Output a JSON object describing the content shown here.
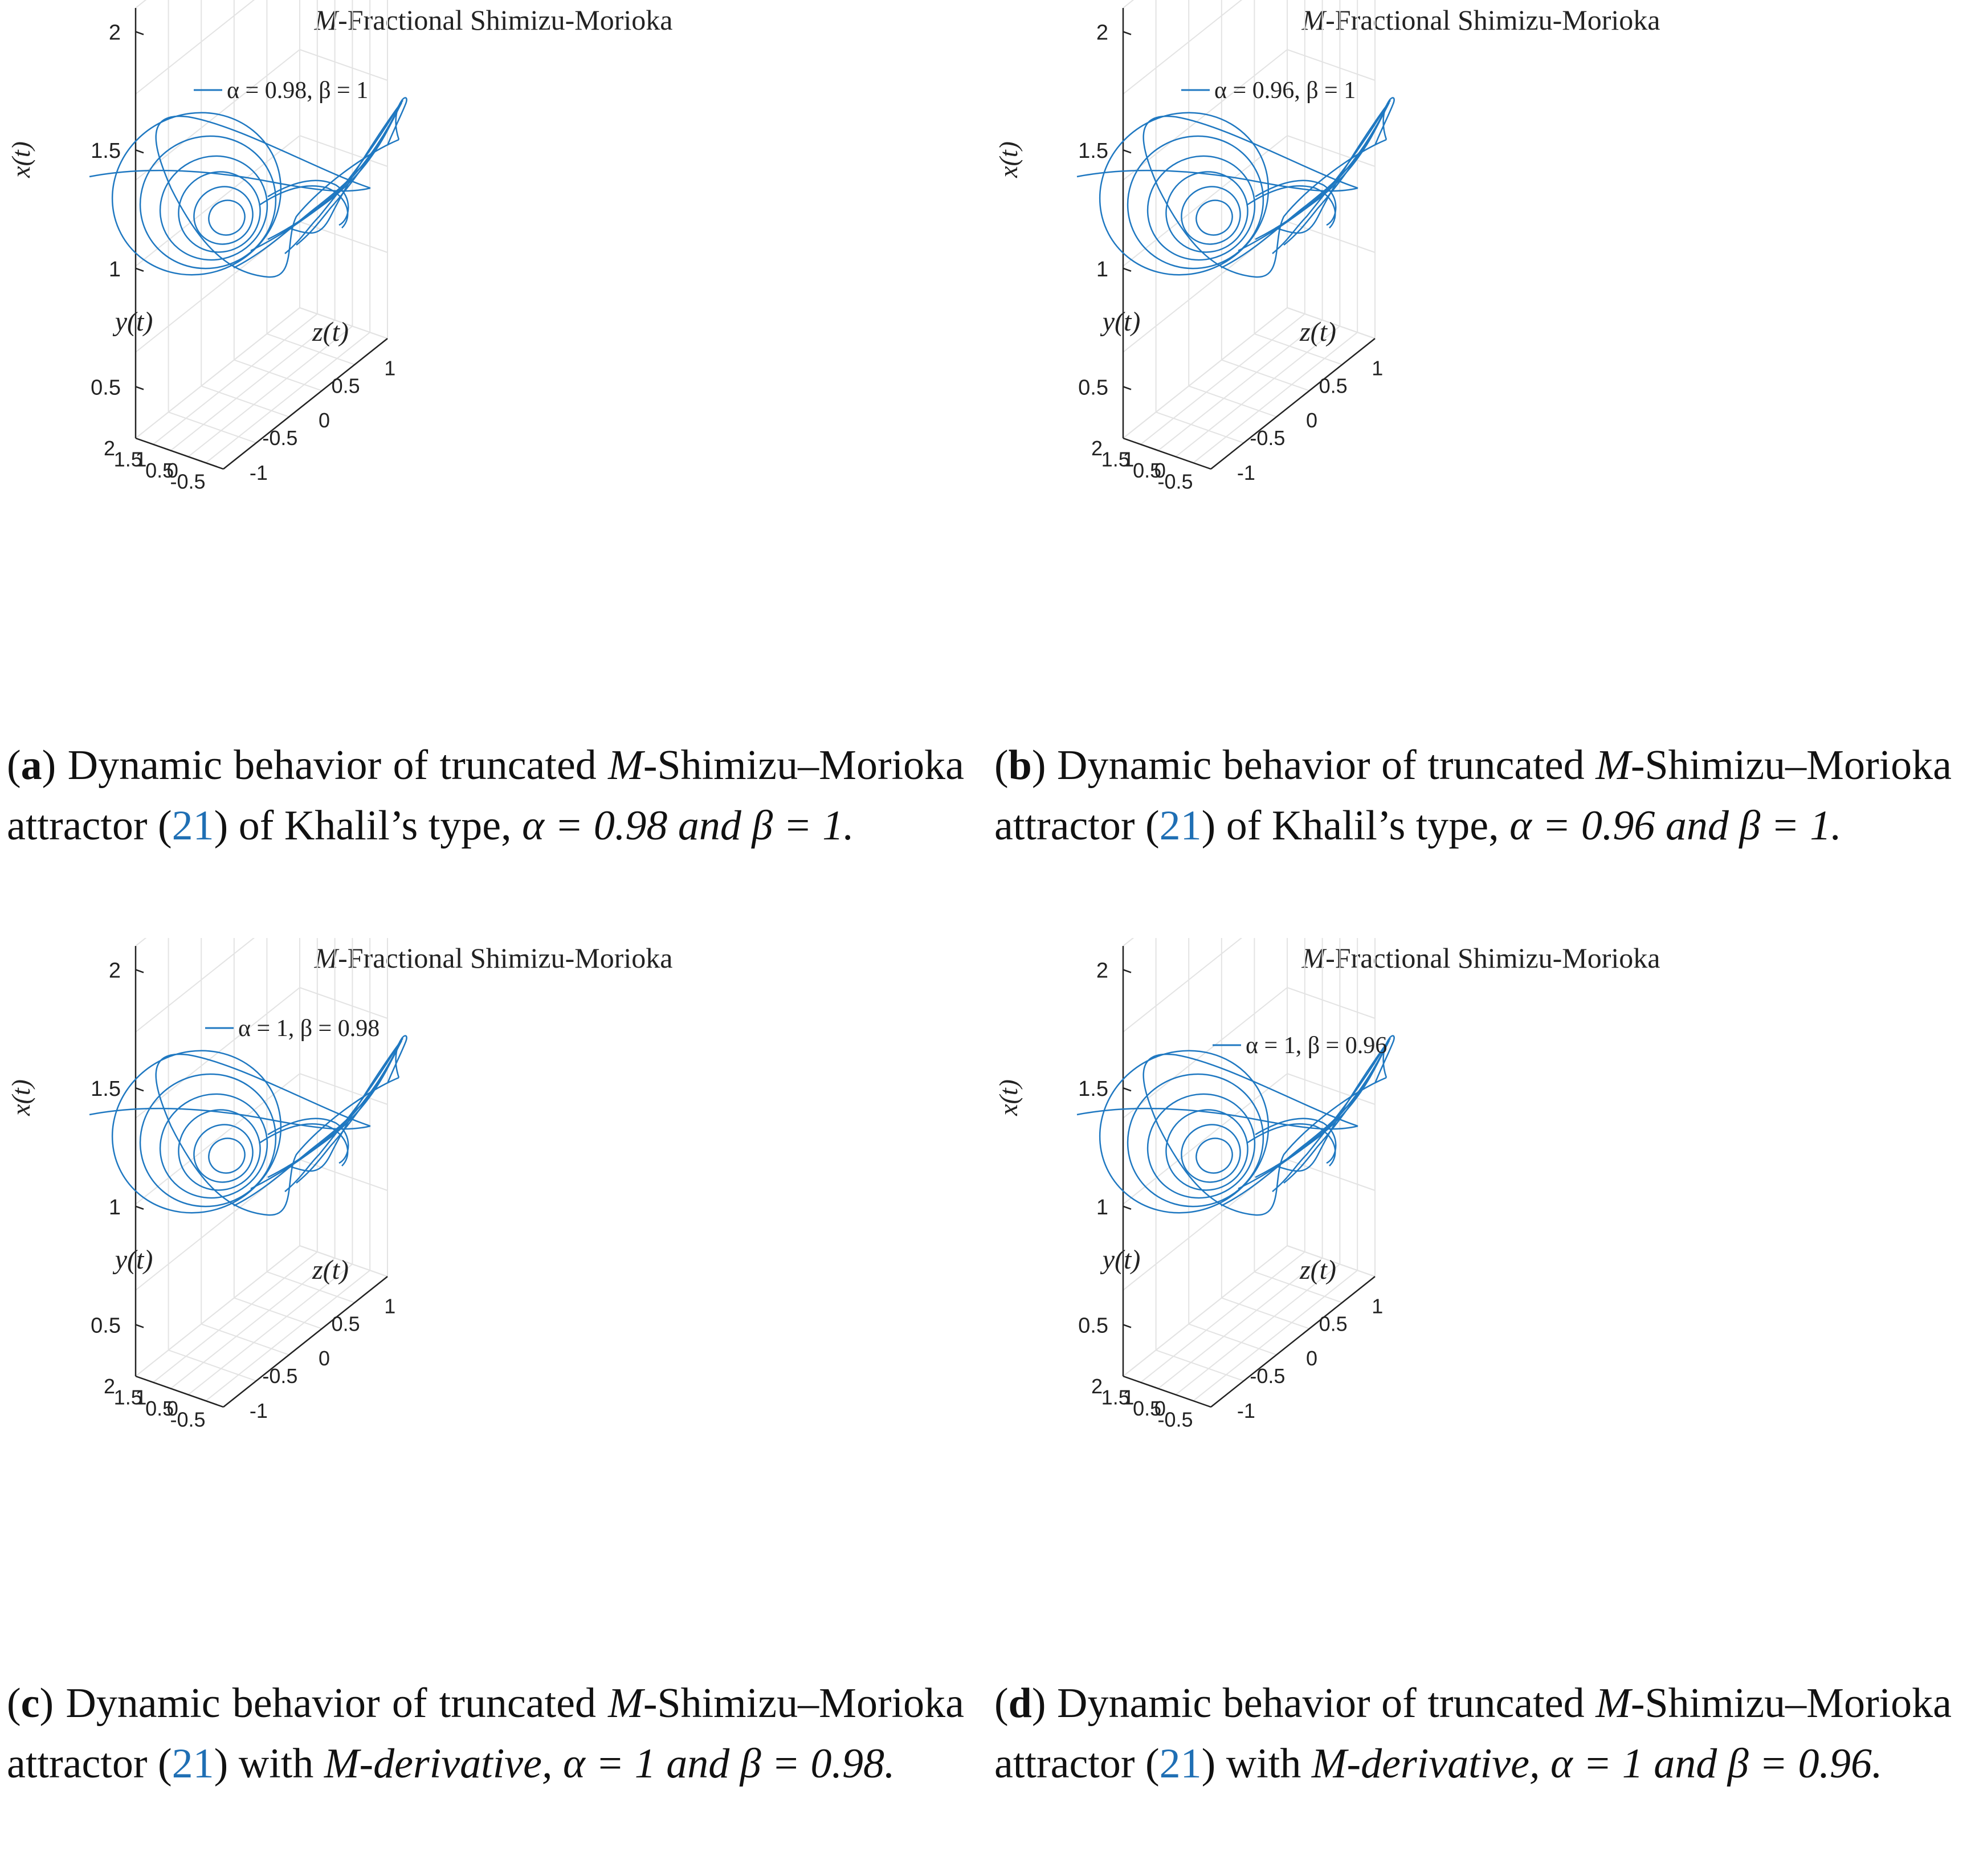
{
  "figure": {
    "panels": [
      {
        "id": "a",
        "title_prefix": "M",
        "title_rest": "-Fractional Shimizu-Morioka",
        "legend": "α = 0.98, β = 1",
        "caption": {
          "letter": "a",
          "text1": "Dynamic behavior of truncated",
          "m": "M",
          "text2": "-Shimizu–Morioka attractor (",
          "ref": "21",
          "text3": ") of Khalil’s type, ",
          "text4": "α = 0.98 and β = 1."
        }
      },
      {
        "id": "b",
        "title_prefix": "M",
        "title_rest": "-Fractional Shimizu-Morioka",
        "legend": "α = 0.96, β = 1",
        "caption": {
          "letter": "b",
          "text1": "Dynamic behavior of truncated",
          "m": "M",
          "text2": "-Shimizu–Morioka attractor (",
          "ref": "21",
          "text3": ") of Khalil’s type, ",
          "text4": "α = 0.96 and β = 1."
        }
      },
      {
        "id": "c",
        "title_prefix": "M",
        "title_rest": "-Fractional Shimizu-Morioka",
        "legend": "α = 1, β = 0.98",
        "caption": {
          "letter": "c",
          "text1": "Dynamic behavior of truncated",
          "m": "M",
          "text2": "-Shimizu–Morioka attractor (",
          "ref": "21",
          "text3": ") with ",
          "text4": "M-derivative, α = 1 and β = 0.98."
        }
      },
      {
        "id": "d",
        "title_prefix": "M",
        "title_rest": "-Fractional Shimizu-Morioka",
        "legend": "α = 1, β = 0.96",
        "caption": {
          "letter": "d",
          "text1": "Dynamic behavior of truncated",
          "m": "M",
          "text2": "-Shimizu–Morioka attractor (",
          "ref": "21",
          "text3": ") with ",
          "text4": "M-derivative, α = 1 and β = 0.96."
        }
      }
    ],
    "axes": {
      "xlabel": "z(t)",
      "ylabel": "y(t)",
      "zlabel": "x(t)",
      "x_ticks": [
        "2",
        "1.5",
        "1",
        "0.5",
        "0",
        "-0.5"
      ],
      "z_ticks": [
        "-1",
        "-0.5",
        "0",
        "0.5",
        "1"
      ],
      "vert_ticks": [
        "0.5",
        "1",
        "1.5",
        "2"
      ]
    },
    "colors": {
      "line": "#1f78c1",
      "grid": "#e3e3e3",
      "axis": "#222222",
      "ref": "#1f6fb4"
    }
  },
  "chart_data": [
    {
      "type": "line",
      "title": "M-Fractional Shimizu-Morioka",
      "series": [
        {
          "name": "α = 0.98, β = 1",
          "params": {
            "alpha": 0.98,
            "beta": 1
          }
        }
      ],
      "xlabel": "z(t)",
      "ylabel": "y(t)",
      "zlabel": "x(t)",
      "xlim": [
        -1.2,
        1.2
      ],
      "ylim": [
        -0.8,
        2
      ],
      "zlim": [
        0.3,
        2.2
      ],
      "grid": true,
      "legend": "top-center"
    },
    {
      "type": "line",
      "title": "M-Fractional Shimizu-Morioka",
      "series": [
        {
          "name": "α = 0.96, β = 1",
          "params": {
            "alpha": 0.96,
            "beta": 1
          }
        }
      ],
      "xlabel": "z(t)",
      "ylabel": "y(t)",
      "zlabel": "x(t)",
      "xlim": [
        -1.2,
        1.2
      ],
      "ylim": [
        -0.8,
        2
      ],
      "zlim": [
        0.3,
        2.2
      ],
      "grid": true,
      "legend": "top-center"
    },
    {
      "type": "line",
      "title": "M-Fractional Shimizu-Morioka",
      "series": [
        {
          "name": "α = 1, β = 0.98",
          "params": {
            "alpha": 1,
            "beta": 0.98
          }
        }
      ],
      "xlabel": "z(t)",
      "ylabel": "y(t)",
      "zlabel": "x(t)",
      "xlim": [
        -1.2,
        1.2
      ],
      "ylim": [
        -0.8,
        2
      ],
      "zlim": [
        0.3,
        2.2
      ],
      "grid": true,
      "legend": "top-center"
    },
    {
      "type": "line",
      "title": "M-Fractional Shimizu-Morioka",
      "series": [
        {
          "name": "α = 1, β = 0.96",
          "params": {
            "alpha": 1,
            "beta": 0.96
          }
        }
      ],
      "xlabel": "z(t)",
      "ylabel": "y(t)",
      "zlabel": "x(t)",
      "xlim": [
        -1.2,
        1.2
      ],
      "ylim": [
        -0.8,
        2
      ],
      "zlim": [
        0.3,
        2.2
      ],
      "grid": true,
      "legend": "top-center"
    }
  ]
}
